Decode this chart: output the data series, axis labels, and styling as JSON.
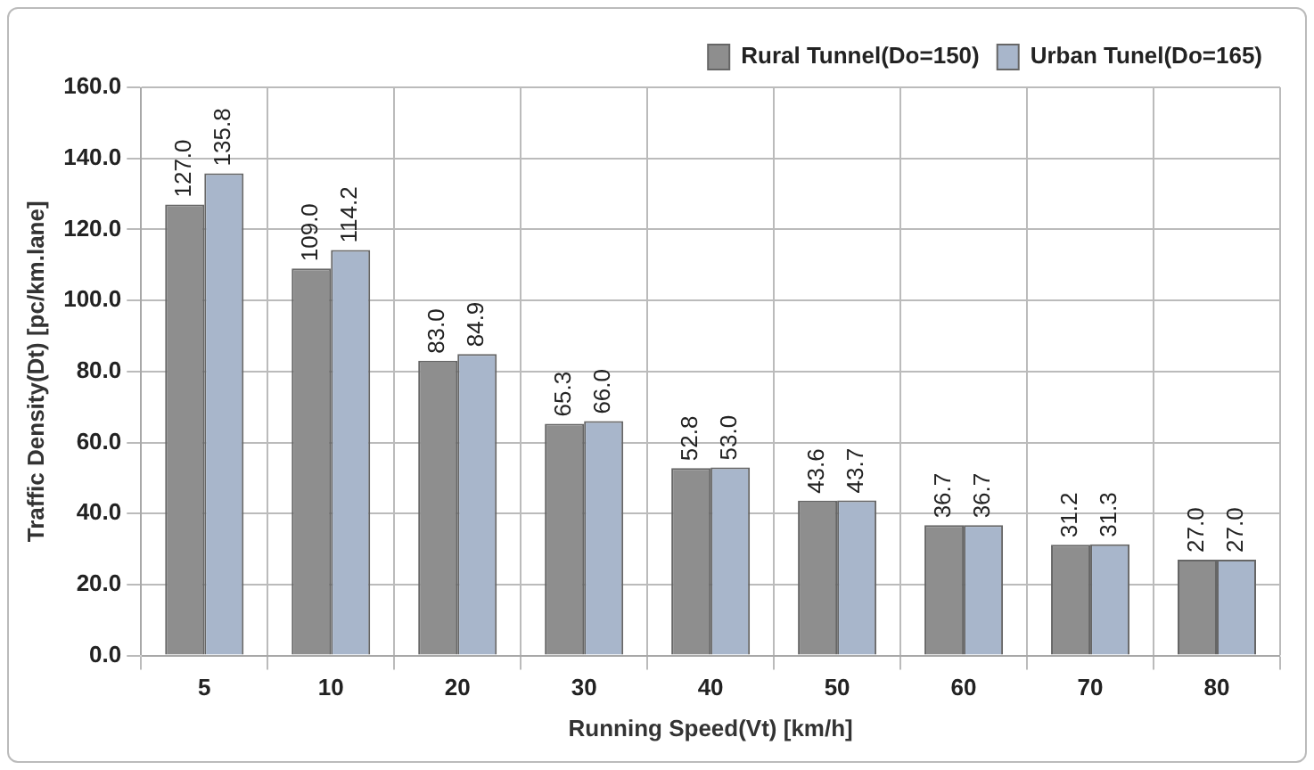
{
  "chart_data": {
    "type": "bar",
    "xlabel": "Running Speed(Vt) [km/h]",
    "ylabel": "Traffic Density(Dt) [pc/km.lane]",
    "categories": [
      "5",
      "10",
      "20",
      "30",
      "40",
      "50",
      "60",
      "70",
      "80"
    ],
    "series": [
      {
        "name": "Rural Tunnel(Do=150)",
        "color": "#8e8e8e",
        "values": [
          127.0,
          109.0,
          83.0,
          65.3,
          52.8,
          43.6,
          36.7,
          31.2,
          27.0
        ],
        "value_labels": [
          "127.0",
          "109.0",
          "83.0",
          "65.3",
          "52.8",
          "43.6",
          "36.7",
          "31.2",
          "27.0"
        ]
      },
      {
        "name": "Urban Tunel(Do=165)",
        "color": "#a8b6cb",
        "values": [
          135.8,
          114.2,
          84.9,
          66.0,
          53.0,
          43.7,
          36.7,
          31.3,
          27.0
        ],
        "value_labels": [
          "135.8",
          "114.2",
          "84.9",
          "66.0",
          "53.0",
          "43.7",
          "36.7",
          "31.3",
          "27.0"
        ]
      }
    ],
    "ylim": [
      0,
      160
    ],
    "yticks": [
      {
        "value": 0,
        "label": "0.0"
      },
      {
        "value": 20,
        "label": "20.0"
      },
      {
        "value": 40,
        "label": "40.0"
      },
      {
        "value": 60,
        "label": "60.0"
      },
      {
        "value": 80,
        "label": "80.0"
      },
      {
        "value": 100,
        "label": "100.0"
      },
      {
        "value": 120,
        "label": "120.0"
      },
      {
        "value": 140,
        "label": "140.0"
      },
      {
        "value": 160,
        "label": "160.0"
      }
    ],
    "grid": true,
    "legend": "top right"
  }
}
